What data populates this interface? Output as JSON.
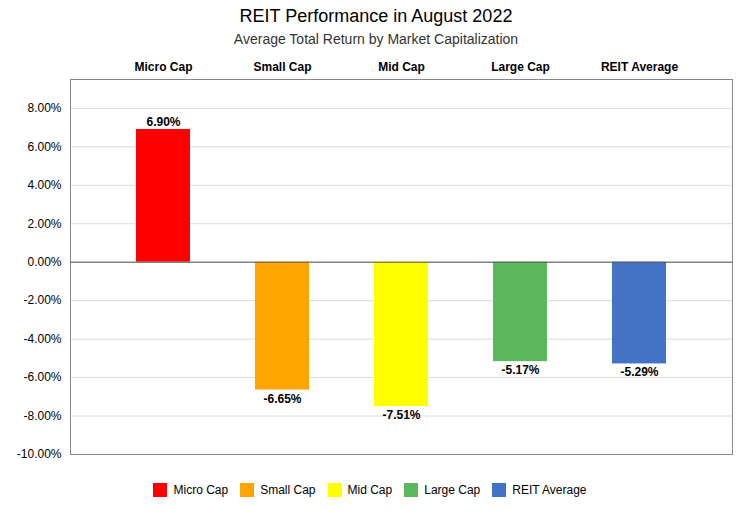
{
  "chart_data": {
    "type": "bar",
    "title": "REIT Performance in August 2022",
    "subtitle": "Average Total Return by Market Capitalization",
    "categories": [
      "Micro Cap",
      "Small Cap",
      "Mid Cap",
      "Large Cap",
      "REIT Average"
    ],
    "values": [
      6.9,
      -6.65,
      -7.51,
      -5.17,
      -5.29
    ],
    "value_labels": [
      "6.90%",
      "-6.65%",
      "-7.51%",
      "-5.17%",
      "-5.29%"
    ],
    "colors": [
      "#FF0000",
      "#FFA500",
      "#FFFF00",
      "#5CB85C",
      "#4472C4"
    ],
    "ylim": [
      -10,
      9.5
    ],
    "yticks": [
      {
        "value": -10,
        "label": "-10.00%"
      },
      {
        "value": -8,
        "label": "-8.00%"
      },
      {
        "value": -6,
        "label": "-6.00%"
      },
      {
        "value": -4,
        "label": "-4.00%"
      },
      {
        "value": -2,
        "label": "-2.00%"
      },
      {
        "value": 0,
        "label": "0.00%"
      },
      {
        "value": 2,
        "label": "2.00%"
      },
      {
        "value": 4,
        "label": "4.00%"
      },
      {
        "value": 6,
        "label": "6.00%"
      },
      {
        "value": 8,
        "label": "8.00%"
      }
    ],
    "grid": true,
    "data_labels": true,
    "legend": "bottom"
  }
}
